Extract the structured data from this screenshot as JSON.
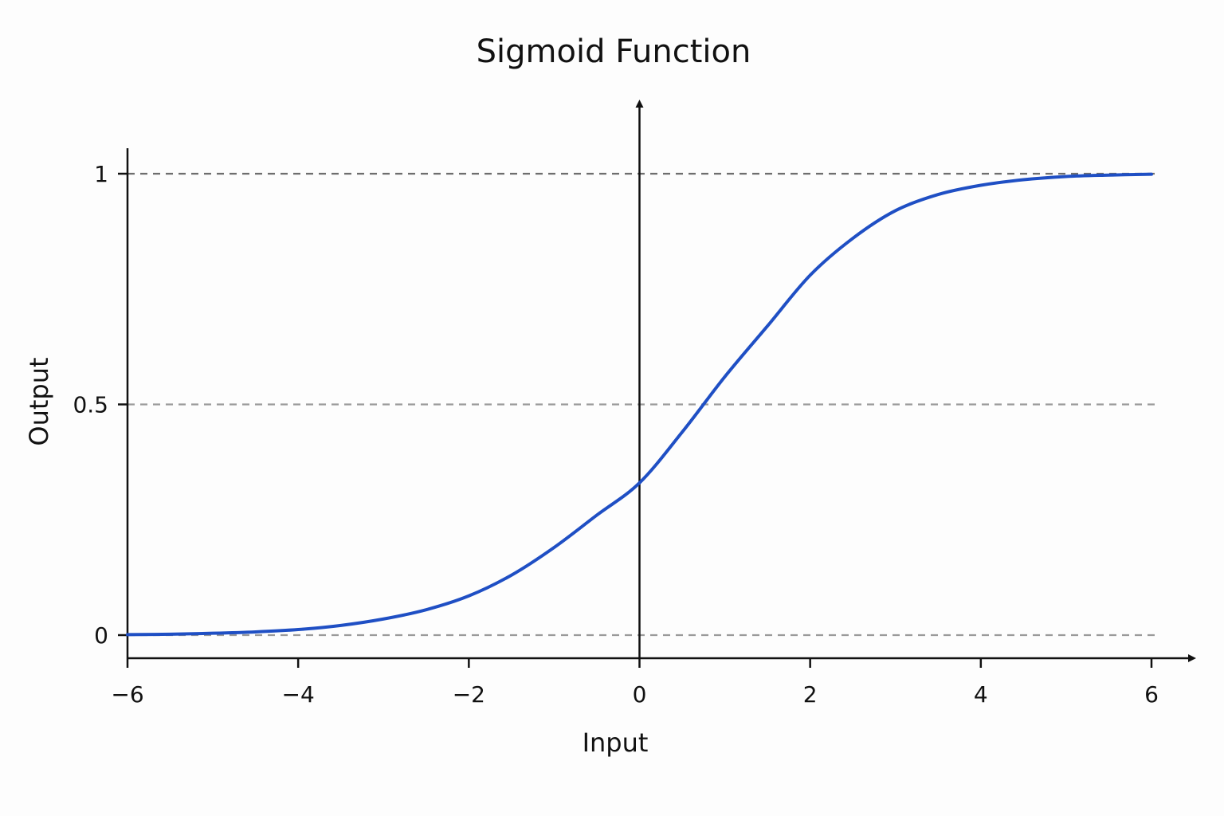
{
  "chart_data": {
    "type": "line",
    "title": "Sigmoid Function",
    "xlabel": "Input",
    "ylabel": "Output",
    "xlim": [
      -6,
      6
    ],
    "ylim": [
      0,
      1
    ],
    "x_ticks": [
      {
        "value": -6,
        "label": "−6"
      },
      {
        "value": -4,
        "label": "−4"
      },
      {
        "value": -2,
        "label": "−2"
      },
      {
        "value": 0,
        "label": "0"
      },
      {
        "value": 2,
        "label": "2"
      },
      {
        "value": 4,
        "label": "4"
      },
      {
        "value": 6,
        "label": "6"
      }
    ],
    "y_ticks": [
      {
        "value": 0,
        "label": "0"
      },
      {
        "value": 0.5,
        "label": "0.5"
      },
      {
        "value": 1,
        "label": "1"
      }
    ],
    "reference_lines_y": [
      0,
      0.5,
      1
    ],
    "grid": false,
    "series": [
      {
        "color": "#1f4fc4",
        "x": [
          -6,
          -5.5,
          -5,
          -4.5,
          -4,
          -3.5,
          -3,
          -2.5,
          -2,
          -1.5,
          -1,
          -0.5,
          0,
          0.5,
          1,
          1.5,
          2,
          2.5,
          3,
          3.5,
          4,
          4.5,
          5,
          5.5,
          6
        ],
        "y": [
          0.001,
          0.002,
          0.004,
          0.007,
          0.012,
          0.021,
          0.035,
          0.055,
          0.085,
          0.13,
          0.19,
          0.26,
          0.33,
          0.44,
          0.56,
          0.67,
          0.78,
          0.86,
          0.92,
          0.955,
          0.975,
          0.987,
          0.994,
          0.997,
          0.999
        ]
      }
    ],
    "colors": {
      "axis": "#111111",
      "reference_line": "#9a9a9a",
      "top_reference_line": "#6e6e6e"
    }
  }
}
